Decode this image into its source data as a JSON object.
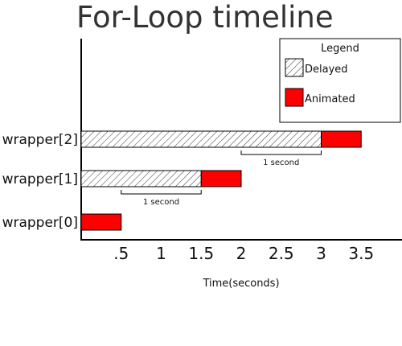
{
  "chart_data": {
    "type": "bar",
    "orientation": "horizontal-stacked",
    "title": "For-Loop timeline",
    "xlabel": "Time(seconds)",
    "ylabel": "",
    "xlim": [
      0,
      4
    ],
    "x_ticks": [
      0.5,
      1,
      1.5,
      2,
      2.5,
      3,
      3.5
    ],
    "x_tick_labels": [
      ".5",
      "1",
      "1.5",
      "2",
      "2.5",
      "3",
      "3.5"
    ],
    "categories": [
      "wrapper[2]",
      "wrapper[1]",
      "wrapper[0]"
    ],
    "series": [
      {
        "name": "Delayed",
        "values": [
          3,
          1.5,
          0
        ]
      },
      {
        "name": "Animated",
        "values": [
          0.5,
          0.5,
          0.5
        ]
      }
    ],
    "annotations": [
      {
        "text": "1 second",
        "x_start": 2,
        "x_end": 3,
        "category": "wrapper[2]"
      },
      {
        "text": "1 second",
        "x_start": 0.5,
        "x_end": 1.5,
        "category": "wrapper[1]"
      }
    ],
    "legend": {
      "title": "Legend",
      "position": "top-right",
      "items": [
        {
          "label": "Delayed",
          "style": "hatched"
        },
        {
          "label": "Animated",
          "style": "solid"
        }
      ]
    },
    "colors": {
      "animated": "#ff0000",
      "delayed_fill": "#ffffff",
      "stroke": "#000000",
      "title": "#333333"
    },
    "grid": false
  }
}
